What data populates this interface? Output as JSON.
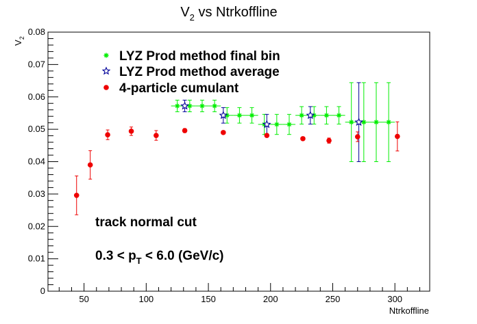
{
  "chart_data": {
    "type": "scatter",
    "title": {
      "main": "V",
      "sub": "2",
      "rest": " vs Ntrkoffline"
    },
    "xlabel": "Ntrkoffline",
    "ylabel": {
      "main": "V",
      "sub": "2"
    },
    "xlim": [
      21,
      328
    ],
    "ylim": [
      0,
      0.08
    ],
    "xticks": [
      50,
      100,
      150,
      200,
      250,
      300
    ],
    "yticks": [
      0,
      0.01,
      0.02,
      0.03,
      0.04,
      0.05,
      0.06,
      0.07,
      0.08
    ],
    "ytick_labels": [
      "0",
      "0.01",
      "0.02",
      "0.03",
      "0.04",
      "0.05",
      "0.06",
      "0.07",
      "0.08"
    ],
    "colors": {
      "final_bin": "#00ee00",
      "average": "#000099",
      "cumulant": "#ee0000",
      "frame": "#000000"
    },
    "legend": [
      {
        "label": "LYZ Prod method final bin",
        "marker": "green-star",
        "series": "final_bin"
      },
      {
        "label": "LYZ Prod method average",
        "marker": "blue-open-star",
        "series": "average"
      },
      {
        "label": "4-particle cumulant",
        "marker": "red-circle",
        "series": "cumulant"
      }
    ],
    "annotations": [
      {
        "text": "track normal cut"
      },
      {
        "parts": [
          "0.3 < p",
          "T",
          " < 6.0 (GeV/c)"
        ]
      }
    ],
    "series": [
      {
        "id": "final_bin",
        "name": "LYZ Prod method final bin",
        "color": "#00ee00",
        "marker": "star",
        "x": [
          125,
          135,
          145,
          155,
          165,
          175,
          185,
          195,
          205,
          215,
          225,
          235,
          245,
          255,
          265,
          275,
          285,
          295
        ],
        "y": [
          0.0572,
          0.0572,
          0.0572,
          0.0572,
          0.0543,
          0.0543,
          0.0543,
          0.0515,
          0.0515,
          0.0515,
          0.0543,
          0.0543,
          0.0543,
          0.0543,
          0.0522,
          0.0522,
          0.0522,
          0.0522
        ],
        "yerr": [
          0.0018,
          0.0018,
          0.0018,
          0.0018,
          0.0024,
          0.0024,
          0.0024,
          0.0031,
          0.0031,
          0.0031,
          0.0027,
          0.0027,
          0.0027,
          0.0027,
          0.0122,
          0.0122,
          0.0122,
          0.0122
        ]
      },
      {
        "id": "average",
        "name": "LYZ Prod method average",
        "color": "#000099",
        "marker": "open-star",
        "x": [
          131,
          162,
          197,
          232,
          271
        ],
        "y": [
          0.0572,
          0.0543,
          0.0515,
          0.0543,
          0.0522
        ],
        "yerr": [
          0.0018,
          0.0024,
          0.0031,
          0.0027,
          0.0122
        ]
      },
      {
        "id": "cumulant",
        "name": "4-particle cumulant",
        "color": "#ee0000",
        "marker": "circle",
        "x": [
          44,
          55,
          69,
          88,
          108,
          131,
          162,
          197,
          226,
          247,
          270,
          302
        ],
        "y": [
          0.0296,
          0.039,
          0.0483,
          0.0494,
          0.0481,
          0.0496,
          0.049,
          0.0481,
          0.0471,
          0.0465,
          0.0477,
          0.0478
        ],
        "yerr": [
          0.006,
          0.0044,
          0.0015,
          0.0013,
          0.0015,
          0.0006,
          0.0005,
          0.0005,
          0.0005,
          0.0008,
          0.0015,
          0.0045
        ]
      }
    ]
  }
}
